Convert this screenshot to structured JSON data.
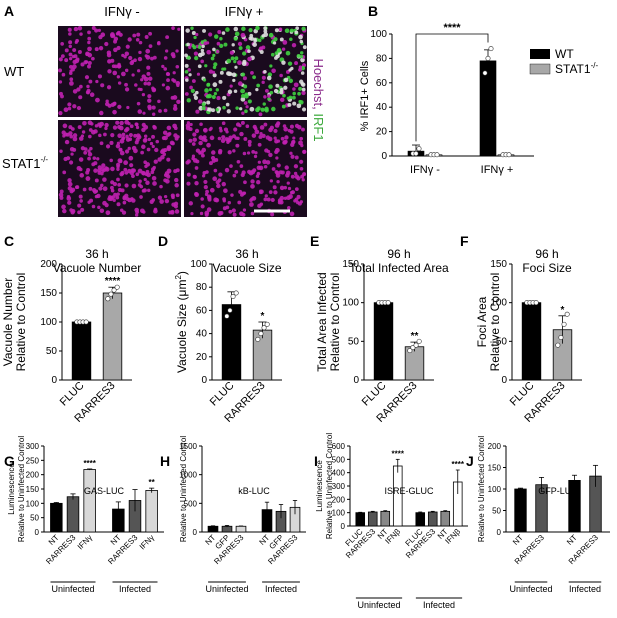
{
  "panel_labels": {
    "A": "A",
    "B": "B",
    "C": "C",
    "D": "D",
    "E": "E",
    "F": "F",
    "G": "G",
    "H": "H",
    "I": "I",
    "J": "J"
  },
  "panel_a": {
    "col_labels": [
      "IFNγ -",
      "IFNγ +"
    ],
    "row_labels": [
      "WT",
      "STAT1"
    ],
    "row2_superscript": "-/-",
    "stain_hoechst": "Hoechst,",
    "stain_irf1": "IRF1",
    "colors": {
      "background": "#1a0a1e",
      "nucleus": "#c020b0",
      "irf1": "#40d040",
      "merged": "#e0e0e0"
    }
  },
  "chart_data": [
    {
      "id": "B",
      "type": "bar",
      "title": "",
      "ylabel": "% IRF1+ Cells",
      "ylim": [
        0,
        100
      ],
      "yticks": [
        0,
        20,
        40,
        60,
        80,
        100
      ],
      "categories": [
        "IFNγ -",
        "IFNγ +"
      ],
      "series": [
        {
          "name": "WT",
          "color": "#000000",
          "values": [
            4,
            78
          ],
          "err": [
            5,
            9
          ],
          "points": [
            [
              2,
              2,
              6
            ],
            [
              68,
              80,
              88
            ]
          ]
        },
        {
          "name": "STAT1",
          "name_sup": "-/-",
          "color": "#a8a8a8",
          "values": [
            1,
            1
          ],
          "err": [
            0.5,
            0.5
          ],
          "points": [
            [
              1,
              1,
              1
            ],
            [
              1,
              1,
              1
            ]
          ]
        }
      ],
      "significance": "****",
      "legend": "right"
    },
    {
      "id": "C",
      "type": "bar",
      "title_line1": "36 h",
      "title_line2": "Vacuole Number",
      "ylabel_line1": "Vacuole Number",
      "ylabel_line2": "Relative to Control",
      "ylim": [
        0,
        200
      ],
      "yticks": [
        0,
        50,
        100,
        150,
        200
      ],
      "categories": [
        "FLUC",
        "RARRES3"
      ],
      "values": [
        100,
        150
      ],
      "err": [
        1,
        10
      ],
      "colors": [
        "#000000",
        "#a8a8a8"
      ],
      "points": [
        [
          100,
          100,
          100,
          100
        ],
        [
          140,
          148,
          155,
          160
        ]
      ],
      "significance": [
        "",
        "****"
      ]
    },
    {
      "id": "D",
      "type": "bar",
      "title_line1": "36 h",
      "title_line2": "Vacuole Size",
      "ylabel": "Vacuole Size (μm",
      "ylabel_sup": "2",
      "ylabel_end": ")",
      "ylim": [
        0,
        100
      ],
      "yticks": [
        0,
        20,
        40,
        60,
        80,
        100
      ],
      "categories": [
        "FLUC",
        "RARRES3"
      ],
      "values": [
        65,
        43
      ],
      "err": [
        11,
        7
      ],
      "colors": [
        "#000000",
        "#a8a8a8"
      ],
      "points": [
        [
          55,
          60,
          72,
          75
        ],
        [
          35,
          40,
          45,
          48
        ]
      ],
      "significance": [
        "",
        "*"
      ]
    },
    {
      "id": "E",
      "type": "bar",
      "title_line1": "96 h",
      "title_line2": "Total Infected Area",
      "ylabel_line1": "Total Area Infected",
      "ylabel_line2": "Relative to Control",
      "ylim": [
        0,
        150
      ],
      "yticks": [
        0,
        50,
        100,
        150
      ],
      "categories": [
        "FLUC",
        "RARRES3"
      ],
      "values": [
        100,
        43
      ],
      "err": [
        1,
        6
      ],
      "colors": [
        "#000000",
        "#a8a8a8"
      ],
      "points": [
        [
          100,
          100,
          100,
          100
        ],
        [
          38,
          42,
          45,
          50
        ]
      ],
      "significance": [
        "",
        "**"
      ]
    },
    {
      "id": "F",
      "type": "bar",
      "title_line1": "96 h",
      "title_line2": "Foci Size",
      "ylabel": "Foci Area",
      "ylabel_line2": "Relative to Control",
      "ylim": [
        0,
        150
      ],
      "yticks": [
        0,
        50,
        100,
        150
      ],
      "categories": [
        "FLUC",
        "RARRES3"
      ],
      "values": [
        100,
        65
      ],
      "err": [
        1,
        18
      ],
      "colors": [
        "#000000",
        "#a8a8a8"
      ],
      "points": [
        [
          100,
          100,
          100,
          100
        ],
        [
          45,
          55,
          72,
          85
        ]
      ],
      "significance": [
        "",
        "*"
      ]
    },
    {
      "id": "G",
      "type": "bar",
      "title": "GAS-LUC",
      "ylabel_line1": "Luminescence",
      "ylabel_line2": "Relative to Uninfected Control",
      "ylim": [
        0,
        300
      ],
      "yticks": [
        0,
        50,
        100,
        150,
        200,
        250,
        300
      ],
      "groups": [
        "Uninfected",
        "Infected"
      ],
      "categories": [
        "NT",
        "RARRES3",
        "IFNγ",
        "NT",
        "RARRES3",
        "IFNγ"
      ],
      "values": [
        100,
        123,
        218,
        80,
        110,
        145
      ],
      "err": [
        3,
        10,
        2,
        25,
        38,
        8
      ],
      "colors": [
        "#000000",
        "#555555",
        "#d8d8d8",
        "#000000",
        "#555555",
        "#d8d8d8"
      ],
      "significance": [
        "",
        "",
        "****",
        "",
        "",
        "**"
      ]
    },
    {
      "id": "H",
      "type": "bar",
      "title": "kB-LUC",
      "ylabel": "Relative to Uninfected Control",
      "ylim": [
        0,
        1500
      ],
      "yticks": [
        0,
        500,
        1000,
        1500
      ],
      "groups": [
        "Uninfected",
        "Infected"
      ],
      "categories": [
        "NT",
        "GFP",
        "RARRES3",
        "NT",
        "GFP",
        "RARRES3"
      ],
      "values": [
        100,
        100,
        100,
        390,
        360,
        430
      ],
      "err": [
        8,
        15,
        5,
        130,
        120,
        120
      ],
      "colors": [
        "#000000",
        "#555555",
        "#d8d8d8",
        "#000000",
        "#555555",
        "#d8d8d8"
      ],
      "significance": [
        "",
        "",
        "",
        "",
        "",
        ""
      ]
    },
    {
      "id": "I",
      "type": "bar",
      "title": "ISRE-GLUC",
      "ylabel_line1": "Luminescence",
      "ylabel_line2": "Relative to Uninfected Control",
      "ylim": [
        0,
        600
      ],
      "yticks": [
        0,
        100,
        200,
        300,
        400,
        500,
        600
      ],
      "groups": [
        "Uninfected",
        "Infected"
      ],
      "categories": [
        "FLUC",
        "RARRES3",
        "NT",
        "IFNβ",
        "FLUC",
        "RARRES3",
        "NT",
        "IFNβ"
      ],
      "values": [
        100,
        105,
        110,
        450,
        100,
        105,
        110,
        330
      ],
      "err": [
        3,
        5,
        5,
        50,
        5,
        5,
        5,
        90
      ],
      "colors": [
        "#000000",
        "#555555",
        "#888888",
        "#ffffff",
        "#000000",
        "#555555",
        "#888888",
        "#ffffff"
      ],
      "significance": [
        "",
        "",
        "",
        "****",
        "",
        "",
        "",
        "****"
      ]
    },
    {
      "id": "J",
      "type": "bar",
      "title": "GFP-LUC",
      "ylabel": "Relative to Uninfected Control",
      "ylim": [
        0,
        200
      ],
      "yticks": [
        0,
        50,
        100,
        150,
        200
      ],
      "groups": [
        "Uninfected",
        "Infected"
      ],
      "categories": [
        "NT",
        "RARRES3",
        "NT",
        "RARRES3"
      ],
      "values": [
        100,
        110,
        120,
        130
      ],
      "err": [
        2,
        17,
        12,
        25
      ],
      "colors": [
        "#000000",
        "#555555",
        "#000000",
        "#555555"
      ],
      "significance": [
        "",
        "",
        "",
        ""
      ]
    }
  ]
}
